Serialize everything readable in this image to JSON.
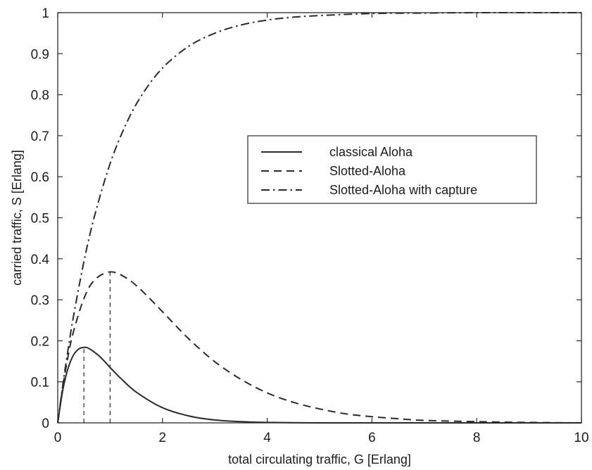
{
  "chart_data": {
    "type": "line",
    "title": "",
    "xlabel": "total circulating traffic, G  [Erlang]",
    "ylabel": "carried traffic, S [Erlang]",
    "xlim": [
      0,
      10
    ],
    "ylim": [
      0,
      1
    ],
    "x_ticks": [
      "0",
      "2",
      "4",
      "6",
      "8",
      "10"
    ],
    "y_ticks": [
      "0",
      "0.1",
      "0.2",
      "0.3",
      "0.4",
      "0.5",
      "0.6",
      "0.7",
      "0.8",
      "0.9",
      "1"
    ],
    "grid": false,
    "legend_position": "center-right",
    "series": [
      {
        "name": "classical Aloha",
        "style": "solid",
        "color": "#2a2a2a",
        "x": [
          0,
          0.1,
          0.2,
          0.3,
          0.4,
          0.5,
          0.6,
          0.8,
          1.0,
          1.2,
          1.5,
          2.0,
          2.5,
          3.0,
          3.5,
          4.0,
          5.0,
          6.0,
          8.0,
          10.0
        ],
        "y": [
          0,
          0.082,
          0.134,
          0.165,
          0.18,
          0.184,
          0.181,
          0.162,
          0.135,
          0.109,
          0.075,
          0.037,
          0.017,
          0.007,
          0.003,
          0.001,
          0,
          0,
          0,
          0
        ]
      },
      {
        "name": "Slotted-Aloha",
        "style": "dashed",
        "color": "#2a2a2a",
        "x": [
          0,
          0.1,
          0.2,
          0.3,
          0.5,
          0.7,
          1.0,
          1.3,
          1.6,
          2.0,
          2.5,
          3.0,
          3.5,
          4.0,
          4.5,
          5.0,
          5.5,
          6.0,
          6.5,
          7.0,
          8.0,
          9.0,
          10.0
        ],
        "y": [
          0,
          0.09,
          0.164,
          0.222,
          0.303,
          0.348,
          0.368,
          0.354,
          0.323,
          0.271,
          0.205,
          0.149,
          0.106,
          0.073,
          0.05,
          0.034,
          0.022,
          0.015,
          0.01,
          0.006,
          0.003,
          0.001,
          0
        ]
      },
      {
        "name": "Slotted-Aloha with capture",
        "style": "dashdot",
        "color": "#2a2a2a",
        "x": [
          0,
          0.1,
          0.2,
          0.3,
          0.5,
          0.7,
          1.0,
          1.3,
          1.6,
          2.0,
          2.5,
          3.0,
          3.5,
          4.0,
          4.5,
          5.0,
          6.0,
          7.0,
          8.0,
          10.0
        ],
        "y": [
          0,
          0.095,
          0.181,
          0.259,
          0.393,
          0.503,
          0.632,
          0.727,
          0.798,
          0.865,
          0.918,
          0.95,
          0.97,
          0.982,
          0.989,
          0.993,
          0.998,
          0.999,
          1.0,
          1.0
        ]
      }
    ],
    "annotations": [
      {
        "type": "vertical-dashed-line",
        "x": 0.5,
        "y_top": 0.184
      },
      {
        "type": "vertical-dashed-line",
        "x": 1.0,
        "y_top": 0.368
      }
    ]
  }
}
